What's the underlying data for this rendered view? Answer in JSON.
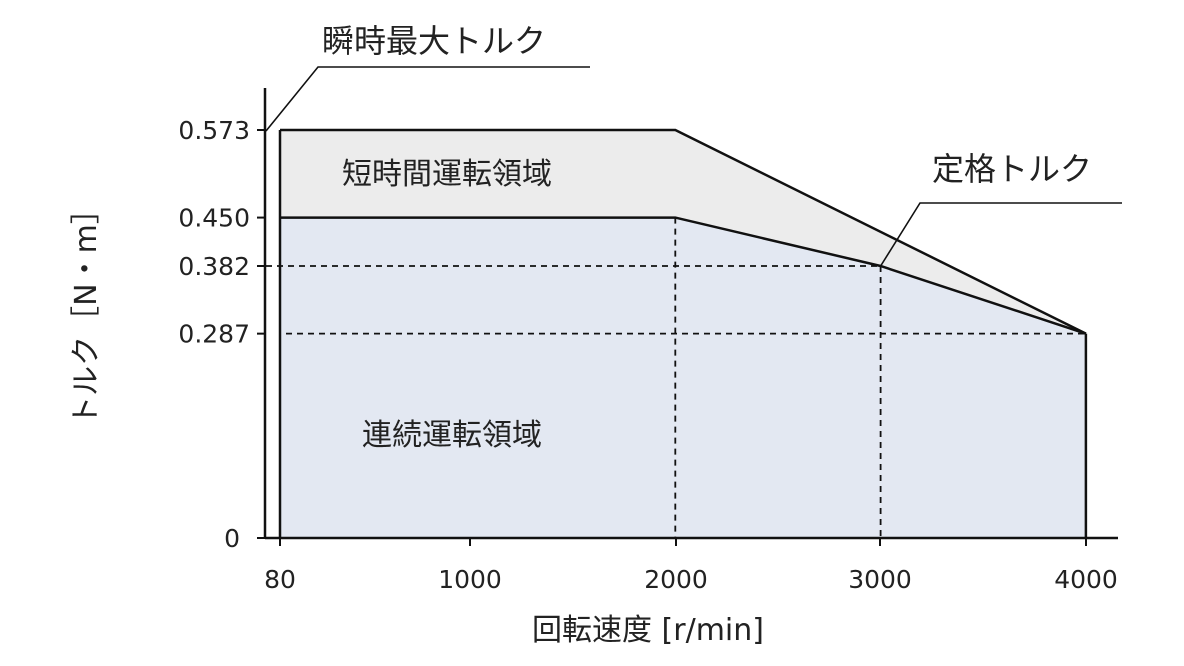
{
  "chart_data": {
    "type": "area",
    "xlabel": "回転速度 [r/min]",
    "ylabel": "トルク［N・m］",
    "x_ticks": [
      "80",
      "1000",
      "2000",
      "3000",
      "4000"
    ],
    "y_ticks": [
      "0",
      "0.287",
      "0.382",
      "0.450",
      "0.573"
    ],
    "xlim": [
      80,
      4000
    ],
    "ylim": [
      0,
      0.573
    ],
    "grid": false,
    "series": [
      {
        "name": "瞬時最大トルク",
        "x": [
          80,
          2000,
          4000
        ],
        "y": [
          0.573,
          0.573,
          0.287
        ]
      },
      {
        "name": "定格トルク",
        "x": [
          80,
          2000,
          3000,
          4000
        ],
        "y": [
          0.45,
          0.45,
          0.382,
          0.287
        ]
      }
    ],
    "regions": {
      "short_term": "短時間運転領域",
      "continuous": "連続運転領域"
    },
    "callouts": {
      "instant_max": "瞬時最大トルク",
      "rated": "定格トルク"
    },
    "colors": {
      "short_term_fill": "#ececec",
      "continuous_fill": "#e3e8f2",
      "line": "#111111"
    }
  }
}
